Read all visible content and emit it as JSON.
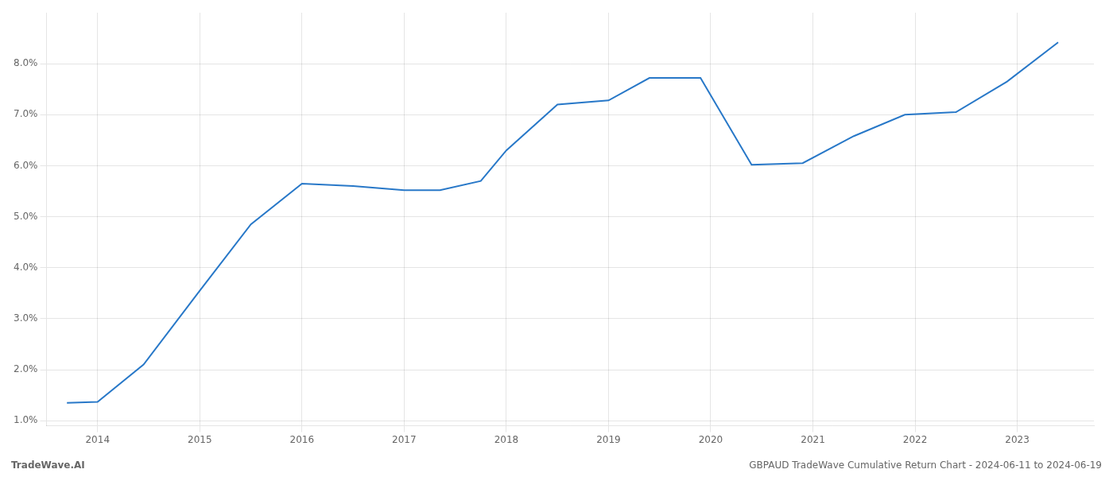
{
  "chart_data": {
    "type": "line",
    "title": "GBPAUD TradeWave Cumulative Return Chart - 2024-06-11 to 2024-06-19",
    "annotations": [
      "TradeWave.AI"
    ],
    "x": [
      2013.7,
      2014.0,
      2014.45,
      2015.0,
      2015.5,
      2016.0,
      2016.5,
      2017.0,
      2017.35,
      2017.75,
      2018.0,
      2018.5,
      2019.0,
      2019.4,
      2019.9,
      2020.4,
      2020.9,
      2021.4,
      2021.9,
      2022.4,
      2022.9,
      2023.4
    ],
    "values": [
      1.35,
      1.37,
      2.1,
      3.55,
      4.85,
      5.65,
      5.6,
      5.52,
      5.52,
      5.7,
      6.3,
      7.2,
      7.28,
      7.72,
      7.72,
      6.02,
      6.05,
      6.58,
      7.0,
      7.05,
      7.65,
      8.42
    ],
    "color": "#2878c8",
    "xlim": [
      2013.5,
      2023.75
    ],
    "ylim": [
      0.9,
      9.0
    ],
    "xticks": [
      2014,
      2015,
      2016,
      2017,
      2018,
      2019,
      2020,
      2021,
      2022,
      2023
    ],
    "yticks": [
      {
        "value": 1.0,
        "label": "1.0%"
      },
      {
        "value": 2.0,
        "label": "2.0%"
      },
      {
        "value": 3.0,
        "label": "3.0%"
      },
      {
        "value": 4.0,
        "label": "4.0%"
      },
      {
        "value": 5.0,
        "label": "5.0%"
      },
      {
        "value": 6.0,
        "label": "6.0%"
      },
      {
        "value": 7.0,
        "label": "7.0%"
      },
      {
        "value": 8.0,
        "label": "8.0%"
      }
    ],
    "grid": true
  }
}
